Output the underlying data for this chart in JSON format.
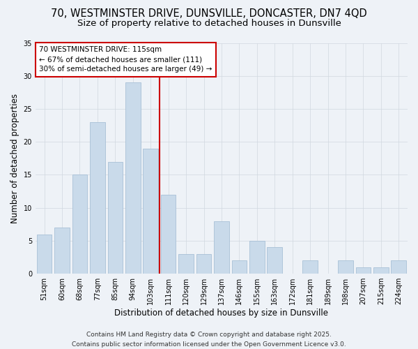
{
  "title_line1": "70, WESTMINSTER DRIVE, DUNSVILLE, DONCASTER, DN7 4QD",
  "title_line2": "Size of property relative to detached houses in Dunsville",
  "xlabel": "Distribution of detached houses by size in Dunsville",
  "ylabel": "Number of detached properties",
  "categories": [
    "51sqm",
    "60sqm",
    "68sqm",
    "77sqm",
    "85sqm",
    "94sqm",
    "103sqm",
    "111sqm",
    "120sqm",
    "129sqm",
    "137sqm",
    "146sqm",
    "155sqm",
    "163sqm",
    "172sqm",
    "181sqm",
    "189sqm",
    "198sqm",
    "207sqm",
    "215sqm",
    "224sqm"
  ],
  "values": [
    6,
    7,
    15,
    23,
    17,
    29,
    19,
    12,
    3,
    3,
    8,
    2,
    5,
    4,
    0,
    2,
    0,
    2,
    1,
    1,
    2
  ],
  "bar_color": "#c9daea",
  "bar_edgecolor": "#a8c0d6",
  "vline_color": "#cc0000",
  "vline_x": 6.5,
  "annotation_box_color": "#ffffff",
  "annotation_box_edgecolor": "#cc0000",
  "highlight_label": "70 WESTMINSTER DRIVE: 115sqm",
  "highlight_sub1": "← 67% of detached houses are smaller (111)",
  "highlight_sub2": "30% of semi-detached houses are larger (49) →",
  "ylim": [
    0,
    35
  ],
  "yticks": [
    0,
    5,
    10,
    15,
    20,
    25,
    30,
    35
  ],
  "grid_color": "#d0d8e0",
  "background_color": "#eef2f7",
  "footer_line1": "Contains HM Land Registry data © Crown copyright and database right 2025.",
  "footer_line2": "Contains public sector information licensed under the Open Government Licence v3.0.",
  "title_fontsize": 10.5,
  "subtitle_fontsize": 9.5,
  "axis_label_fontsize": 8.5,
  "tick_fontsize": 7,
  "annotation_fontsize": 7.5,
  "footer_fontsize": 6.5,
  "ylabel_fontsize": 8.5
}
